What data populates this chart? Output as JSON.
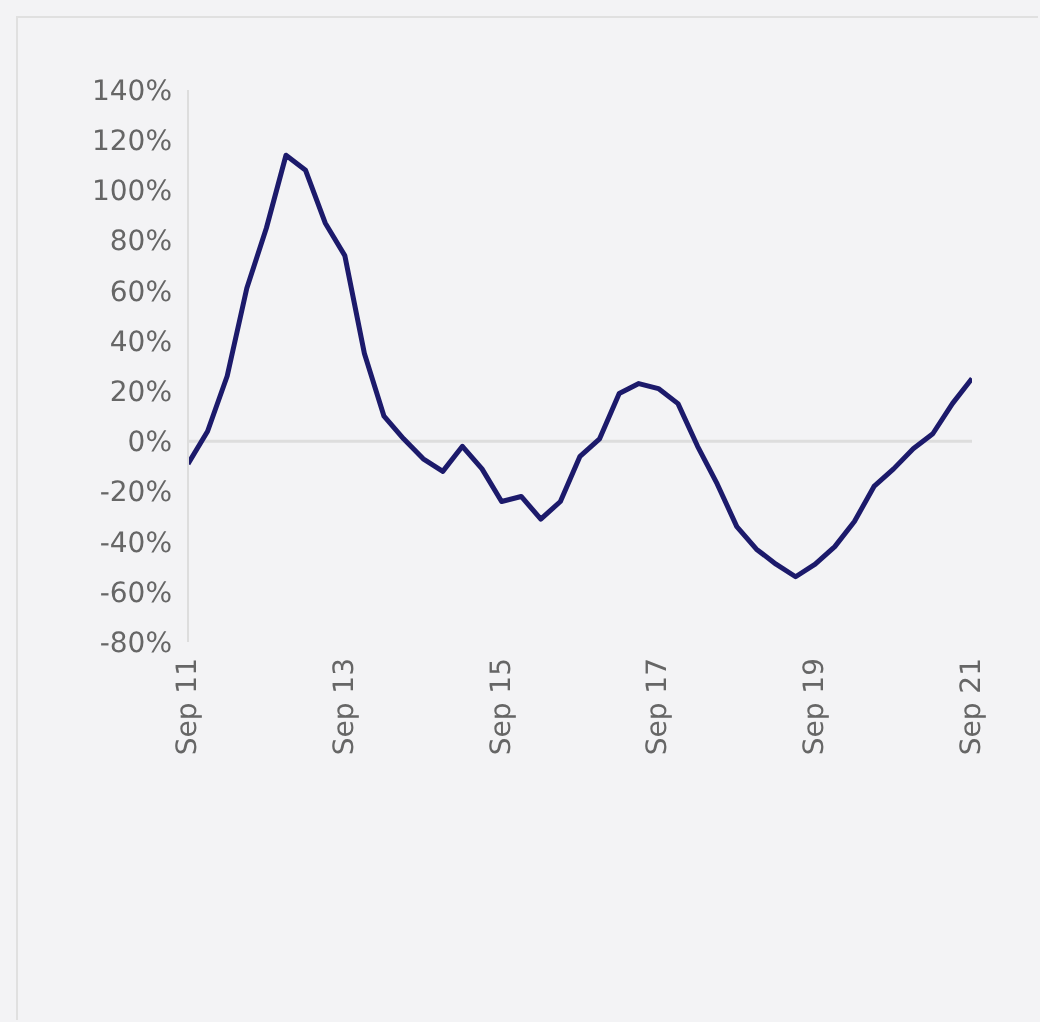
{
  "chart_data": {
    "type": "line",
    "x": [
      "2011-09",
      "2011-12",
      "2012-03",
      "2012-06",
      "2012-09",
      "2012-12",
      "2013-03",
      "2013-06",
      "2013-09",
      "2013-12",
      "2014-03",
      "2014-06",
      "2014-09",
      "2014-12",
      "2015-03",
      "2015-06",
      "2015-09",
      "2015-12",
      "2016-03",
      "2016-06",
      "2016-09",
      "2016-12",
      "2017-03",
      "2017-06",
      "2017-09",
      "2017-12",
      "2018-03",
      "2018-06",
      "2018-09",
      "2018-12",
      "2019-03",
      "2019-06",
      "2019-09",
      "2019-12",
      "2020-03",
      "2020-06",
      "2020-09",
      "2020-12",
      "2021-03",
      "2021-06",
      "2021-09"
    ],
    "series": [
      {
        "color": "#1c1a6b",
        "values": [
          -9,
          4,
          26,
          61,
          85,
          114,
          108,
          87,
          74,
          35,
          10,
          1,
          -7,
          -12,
          -2,
          -11,
          -24,
          -22,
          -31,
          -24,
          -6,
          1,
          19,
          23,
          21,
          15,
          -2,
          -17,
          -34,
          -43,
          -49,
          -54,
          -49,
          -42,
          -32,
          -18,
          -11,
          -3,
          3,
          15,
          25
        ]
      }
    ],
    "xlim": [
      "2011-09",
      "2021-09"
    ],
    "xticks": [
      {
        "value": "2011-09",
        "label": "Sep 11"
      },
      {
        "value": "2013-09",
        "label": "Sep 13"
      },
      {
        "value": "2015-09",
        "label": "Sep 15"
      },
      {
        "value": "2017-09",
        "label": "Sep 17"
      },
      {
        "value": "2019-09",
        "label": "Sep 19"
      },
      {
        "value": "2021-09",
        "label": "Sep 21"
      }
    ],
    "ylim": [
      -80,
      140
    ],
    "yticks": [
      {
        "value": -80,
        "label": "-80%"
      },
      {
        "value": -60,
        "label": "-60%"
      },
      {
        "value": -40,
        "label": "-40%"
      },
      {
        "value": -20,
        "label": "-20%"
      },
      {
        "value": 0,
        "label": "0%"
      },
      {
        "value": 20,
        "label": "20%"
      },
      {
        "value": 40,
        "label": "40%"
      },
      {
        "value": 60,
        "label": "60%"
      },
      {
        "value": 80,
        "label": "80%"
      },
      {
        "value": 100,
        "label": "100%"
      },
      {
        "value": 120,
        "label": "120%"
      },
      {
        "value": 140,
        "label": "140%"
      }
    ],
    "ref_lines": [
      {
        "axis": "y",
        "value": 0,
        "color": "#dddddd"
      }
    ],
    "grid": false,
    "legend": false,
    "marker": "none",
    "line_style": "solid"
  }
}
